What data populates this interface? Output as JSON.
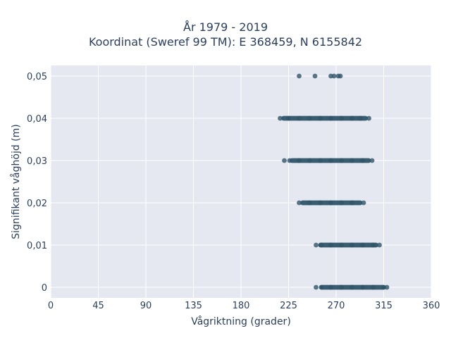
{
  "chart_data": {
    "type": "scatter",
    "title_lines": [
      "År 1979 - 2019",
      "Koordinat (Sweref 99 TM): E 368459, N 6155842"
    ],
    "xlabel": "Vågriktning (grader)",
    "ylabel": "Signifikant våghöjd (m)",
    "xlim": [
      0,
      360
    ],
    "ylim": [
      -0.0025,
      0.0525
    ],
    "x_ticks": [
      0,
      45,
      90,
      135,
      180,
      225,
      270,
      315,
      360
    ],
    "x_tick_labels": [
      "0",
      "45",
      "90",
      "135",
      "180",
      "225",
      "270",
      "315",
      "360"
    ],
    "y_ticks": [
      0,
      0.01,
      0.02,
      0.03,
      0.04,
      0.05
    ],
    "y_tick_labels": [
      "0",
      "0,01",
      "0,02",
      "0,03",
      "0,04",
      "0,05"
    ],
    "grid": true,
    "marker_color": "#2f5468",
    "plot_background": "#e5e8f0",
    "series": [
      {
        "points": [
          [
            235,
            0.05
          ],
          [
            250,
            0.05
          ],
          [
            265,
            0.05
          ],
          [
            268,
            0.05
          ],
          [
            272,
            0.05
          ],
          [
            274,
            0.05
          ],
          [
            217,
            0.04
          ],
          [
            225,
            0.04
          ],
          [
            235,
            0.04
          ],
          [
            245,
            0.04
          ],
          [
            255,
            0.04
          ],
          [
            265,
            0.04
          ],
          [
            275,
            0.04
          ],
          [
            285,
            0.04
          ],
          [
            293,
            0.04
          ],
          [
            301,
            0.04
          ],
          [
            221,
            0.03
          ],
          [
            226,
            0.03
          ],
          [
            235,
            0.03
          ],
          [
            245,
            0.03
          ],
          [
            255,
            0.03
          ],
          [
            265,
            0.03
          ],
          [
            275,
            0.03
          ],
          [
            285,
            0.03
          ],
          [
            295,
            0.03
          ],
          [
            304,
            0.03
          ],
          [
            235,
            0.02
          ],
          [
            245,
            0.02
          ],
          [
            255,
            0.02
          ],
          [
            265,
            0.02
          ],
          [
            275,
            0.02
          ],
          [
            285,
            0.02
          ],
          [
            296,
            0.02
          ],
          [
            251,
            0.01
          ],
          [
            256,
            0.01
          ],
          [
            265,
            0.01
          ],
          [
            275,
            0.01
          ],
          [
            285,
            0.01
          ],
          [
            295,
            0.01
          ],
          [
            305,
            0.01
          ],
          [
            311,
            0.01
          ],
          [
            251,
            0
          ],
          [
            256,
            0
          ],
          [
            265,
            0
          ],
          [
            275,
            0
          ],
          [
            285,
            0
          ],
          [
            295,
            0
          ],
          [
            305,
            0
          ],
          [
            315,
            0
          ],
          [
            318,
            0
          ]
        ],
        "bands": [
          {
            "y": 0.04,
            "x_from": 218,
            "x_to": 300
          },
          {
            "y": 0.03,
            "x_from": 226,
            "x_to": 303
          },
          {
            "y": 0.02,
            "x_from": 236,
            "x_to": 295
          },
          {
            "y": 0.01,
            "x_from": 253,
            "x_to": 310
          },
          {
            "y": 0,
            "x_from": 254,
            "x_to": 317
          }
        ]
      }
    ]
  }
}
